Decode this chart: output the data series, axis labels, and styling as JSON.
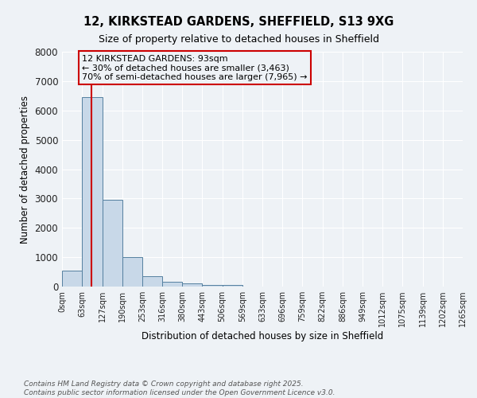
{
  "title1": "12, KIRKSTEAD GARDENS, SHEFFIELD, S13 9XG",
  "title2": "Size of property relative to detached houses in Sheffield",
  "xlabel": "Distribution of detached houses by size in Sheffield",
  "ylabel": "Number of detached properties",
  "bin_edges": [
    0,
    63,
    127,
    190,
    253,
    316,
    380,
    443,
    506,
    569,
    633,
    696,
    759,
    822,
    886,
    949,
    1012,
    1075,
    1139,
    1202,
    1265
  ],
  "bar_heights": [
    550,
    6450,
    2950,
    1000,
    350,
    150,
    110,
    60,
    50,
    0,
    0,
    0,
    0,
    0,
    0,
    0,
    0,
    0,
    0,
    0
  ],
  "bar_color": "#c8d8e8",
  "bar_edge_color": "#5580a0",
  "property_size": 93,
  "vline_color": "#cc0000",
  "annotation_line1": "12 KIRKSTEAD GARDENS: 93sqm",
  "annotation_line2": "← 30% of detached houses are smaller (3,463)",
  "annotation_line3": "70% of semi-detached houses are larger (7,965) →",
  "annotation_box_color": "#cc0000",
  "ylim": [
    0,
    8000
  ],
  "yticks": [
    0,
    1000,
    2000,
    3000,
    4000,
    5000,
    6000,
    7000,
    8000
  ],
  "background_color": "#eef2f6",
  "grid_color": "#ffffff",
  "footnote": "Contains HM Land Registry data © Crown copyright and database right 2025.\nContains public sector information licensed under the Open Government Licence v3.0."
}
